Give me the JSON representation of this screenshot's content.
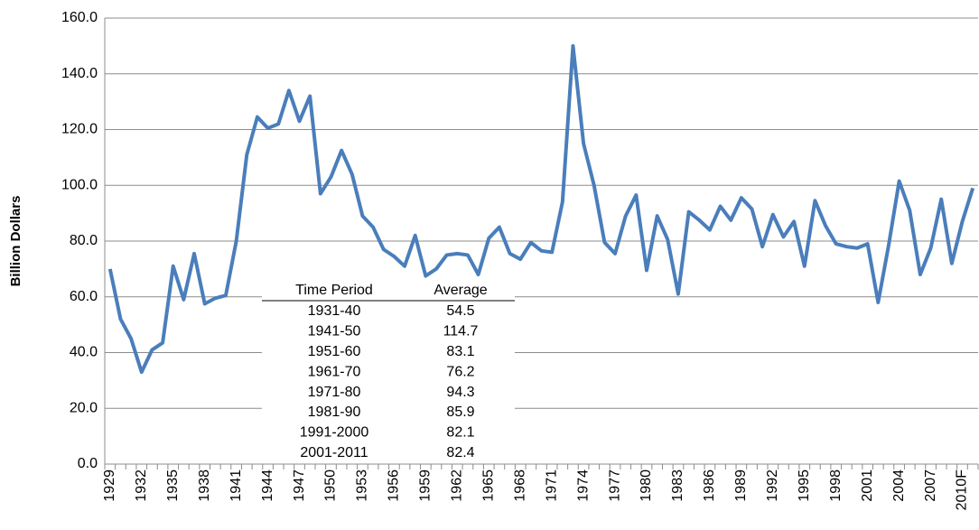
{
  "chart_data": {
    "type": "line",
    "y_label": "Billion Dollars",
    "categories": [
      "1929",
      null,
      null,
      "1932",
      null,
      null,
      "1935",
      null,
      null,
      "1938",
      null,
      null,
      "1941",
      null,
      null,
      "1944",
      null,
      null,
      "1947",
      null,
      null,
      "1950",
      null,
      null,
      "1953",
      null,
      null,
      "1956",
      null,
      null,
      "1959",
      null,
      null,
      "1962",
      null,
      null,
      "1965",
      null,
      null,
      "1968",
      null,
      null,
      "1971",
      null,
      null,
      "1974",
      null,
      null,
      "1977",
      null,
      null,
      "1980",
      null,
      null,
      "1983",
      null,
      null,
      "1986",
      null,
      null,
      "1989",
      null,
      null,
      "1992",
      null,
      null,
      "1995",
      null,
      null,
      "1998",
      null,
      null,
      "2001",
      null,
      null,
      "2004",
      null,
      null,
      "2007",
      null,
      null,
      "2010F",
      null
    ],
    "values": [
      70,
      52,
      45,
      33,
      41,
      43.5,
      71,
      59,
      75.5,
      57.5,
      59.5,
      60.5,
      80,
      111,
      124.5,
      120.5,
      122,
      134,
      123,
      132,
      97,
      103,
      112.5,
      104,
      89,
      85,
      77,
      74.5,
      71,
      82,
      67.5,
      70,
      75,
      75.5,
      75,
      68,
      81,
      85,
      75.5,
      73.5,
      79.5,
      76.5,
      76,
      94,
      150,
      115,
      100,
      79.5,
      75.5,
      89,
      96.5,
      69.5,
      89,
      80.5,
      61,
      90.5,
      87.5,
      84,
      92.5,
      87.5,
      95.5,
      91.5,
      78,
      89.5,
      81.5,
      87,
      71,
      94.5,
      85.5,
      79,
      78,
      77.5,
      79,
      58,
      78.5,
      101.5,
      91,
      68,
      77.5,
      95,
      72,
      87,
      99
    ],
    "color": "#4a7ebb",
    "ylim": [
      0,
      160
    ],
    "yticks": [
      {
        "value": 0,
        "label": "0.0"
      },
      {
        "value": 20,
        "label": "20.0"
      },
      {
        "value": 40,
        "label": "40.0"
      },
      {
        "value": 60,
        "label": "60.0"
      },
      {
        "value": 80,
        "label": "80.0"
      },
      {
        "value": 100,
        "label": "100.0"
      },
      {
        "value": 120,
        "label": "120.0"
      },
      {
        "value": 140,
        "label": "140.0"
      },
      {
        "value": 160,
        "label": "160.0"
      }
    ],
    "grid": true,
    "table": {
      "columns": [
        "Time Period",
        "Average"
      ],
      "rows": [
        [
          "1931-40",
          "54.5"
        ],
        [
          "1941-50",
          "114.7"
        ],
        [
          "1951-60",
          "83.1"
        ],
        [
          "1961-70",
          "76.2"
        ],
        [
          "1971-80",
          "94.3"
        ],
        [
          "1981-90",
          "85.9"
        ],
        [
          "1991-2000",
          "82.1"
        ],
        [
          "2001-2011",
          "82.4"
        ]
      ]
    }
  }
}
